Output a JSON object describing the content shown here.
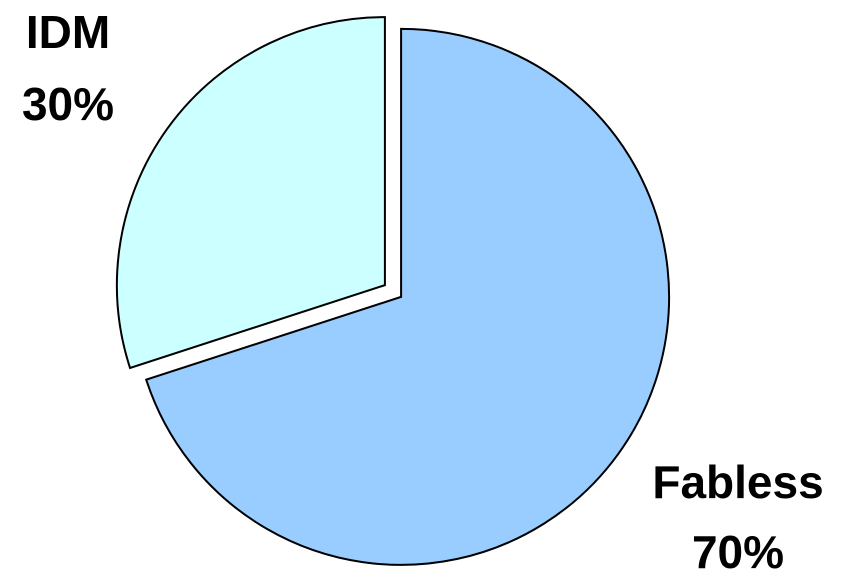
{
  "chart_data": {
    "type": "pie",
    "categories": [
      "Fabless",
      "IDM"
    ],
    "values": [
      70,
      30
    ],
    "value_labels": [
      "70%",
      "30%"
    ],
    "colors": [
      "#99ccff",
      "#ccffff"
    ],
    "exploded": true
  }
}
